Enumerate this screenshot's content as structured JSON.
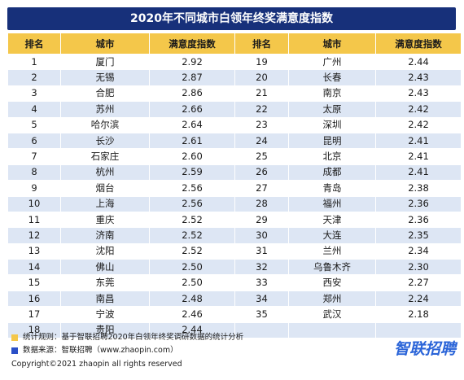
{
  "chart_data": {
    "type": "table",
    "title": "2020年不同城市白领年终奖满意度指数",
    "headers": [
      "排名",
      "城市",
      "满意度指数",
      "排名",
      "城市",
      "满意度指数"
    ],
    "rows": [
      {
        "rank": "1",
        "city": "厦门",
        "index": "2.92"
      },
      {
        "rank": "2",
        "city": "无锡",
        "index": "2.87"
      },
      {
        "rank": "3",
        "city": "合肥",
        "index": "2.86"
      },
      {
        "rank": "4",
        "city": "苏州",
        "index": "2.66"
      },
      {
        "rank": "5",
        "city": "哈尔滨",
        "index": "2.64"
      },
      {
        "rank": "6",
        "city": "长沙",
        "index": "2.61"
      },
      {
        "rank": "7",
        "city": "石家庄",
        "index": "2.60"
      },
      {
        "rank": "8",
        "city": "杭州",
        "index": "2.59"
      },
      {
        "rank": "9",
        "city": "烟台",
        "index": "2.56"
      },
      {
        "rank": "10",
        "city": "上海",
        "index": "2.56"
      },
      {
        "rank": "11",
        "city": "重庆",
        "index": "2.52"
      },
      {
        "rank": "12",
        "city": "济南",
        "index": "2.52"
      },
      {
        "rank": "13",
        "city": "沈阳",
        "index": "2.52"
      },
      {
        "rank": "14",
        "city": "佛山",
        "index": "2.50"
      },
      {
        "rank": "15",
        "city": "东莞",
        "index": "2.50"
      },
      {
        "rank": "16",
        "city": "南昌",
        "index": "2.48"
      },
      {
        "rank": "17",
        "city": "宁波",
        "index": "2.46"
      },
      {
        "rank": "18",
        "city": "贵阳",
        "index": "2.44"
      },
      {
        "rank": "19",
        "city": "广州",
        "index": "2.44"
      },
      {
        "rank": "20",
        "city": "长春",
        "index": "2.43"
      },
      {
        "rank": "21",
        "city": "南京",
        "index": "2.43"
      },
      {
        "rank": "22",
        "city": "太原",
        "index": "2.42"
      },
      {
        "rank": "23",
        "city": "深圳",
        "index": "2.42"
      },
      {
        "rank": "24",
        "city": "昆明",
        "index": "2.41"
      },
      {
        "rank": "25",
        "city": "北京",
        "index": "2.41"
      },
      {
        "rank": "26",
        "city": "成都",
        "index": "2.41"
      },
      {
        "rank": "27",
        "city": "青岛",
        "index": "2.38"
      },
      {
        "rank": "28",
        "city": "福州",
        "index": "2.36"
      },
      {
        "rank": "29",
        "city": "天津",
        "index": "2.36"
      },
      {
        "rank": "30",
        "city": "大连",
        "index": "2.35"
      },
      {
        "rank": "31",
        "city": "兰州",
        "index": "2.34"
      },
      {
        "rank": "32",
        "city": "乌鲁木齐",
        "index": "2.30"
      },
      {
        "rank": "33",
        "city": "西安",
        "index": "2.27"
      },
      {
        "rank": "34",
        "city": "郑州",
        "index": "2.24"
      },
      {
        "rank": "35",
        "city": "武汉",
        "index": "2.18"
      }
    ]
  },
  "notes": {
    "rule_label": "统计规则：基于智联招聘2020年白领年终奖调研数据的统计分析",
    "source_label": "数据来源：智联招聘（www.zhaopin.com）",
    "copyright": "Copyright©2021 zhaopin all rights reserved"
  },
  "logo_text": "智联招聘",
  "colors": {
    "title_bg": "#17307a",
    "header_bg": "#f4c74a",
    "row_stripe": "#dde6f4",
    "rule_marker": "#f4c74a",
    "source_marker": "#2a4fc7",
    "logo": "#2a64d8"
  }
}
